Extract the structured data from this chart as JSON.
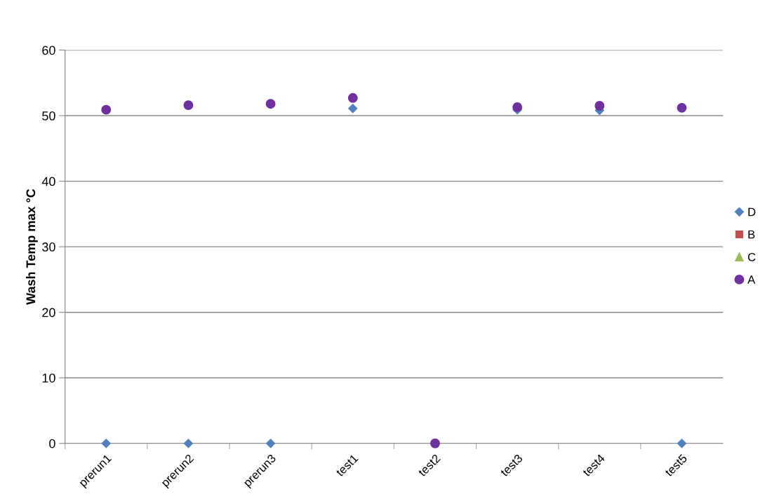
{
  "chart_data": {
    "type": "scatter",
    "ylabel": "Wash Temp max °C",
    "categories": [
      "prerun1",
      "prerun2",
      "prerun3",
      "test1",
      "test2",
      "test3",
      "test4",
      "test5"
    ],
    "series": [
      {
        "name": "D",
        "color": "#4f81bd",
        "marker": "diamond",
        "values": [
          0,
          0,
          0,
          51.1,
          null,
          50.9,
          50.8,
          0
        ]
      },
      {
        "name": "B",
        "color": "#c0504d",
        "marker": "square",
        "values": [
          null,
          null,
          null,
          null,
          null,
          null,
          null,
          null
        ]
      },
      {
        "name": "C",
        "color": "#9bbb59",
        "marker": "triangle",
        "values": [
          null,
          null,
          null,
          null,
          null,
          null,
          null,
          null
        ]
      },
      {
        "name": "A",
        "color": "#7030a0",
        "marker": "circle",
        "values": [
          50.9,
          51.6,
          51.8,
          52.7,
          0,
          51.3,
          51.5,
          51.2
        ]
      }
    ],
    "ylim": [
      0,
      60
    ],
    "yticks": [
      0,
      10,
      20,
      30,
      40,
      50,
      60
    ],
    "grid": "y",
    "legend": "right"
  }
}
